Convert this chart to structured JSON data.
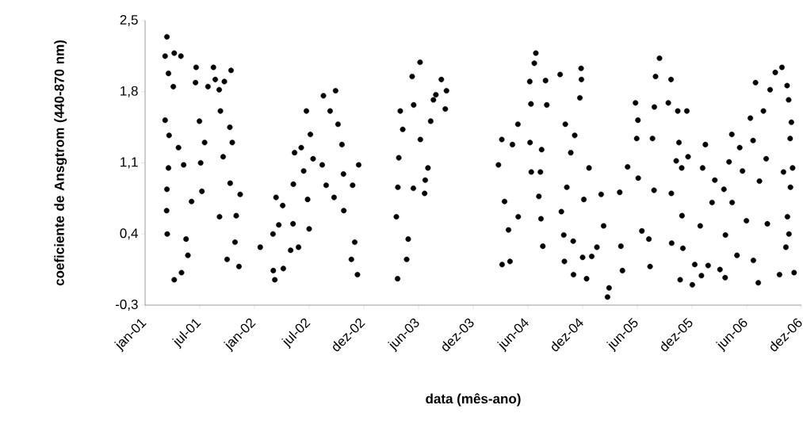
{
  "chart_data": {
    "type": "scatter",
    "xlabel": "data (mês-ano)",
    "ylabel": "coeficiente de Ansgtrom (440-870 nm)",
    "color": "#000000",
    "marker": "circle",
    "xlim": [
      "2001-01-10",
      "2006-12-10"
    ],
    "ylim": [
      -0.3,
      2.5
    ],
    "xticks": [
      {
        "value": "2001-01-10",
        "label": "jan-01"
      },
      {
        "value": "2001-07-09",
        "label": "jul-01"
      },
      {
        "value": "2002-01-05",
        "label": "jan-02"
      },
      {
        "value": "2002-07-04",
        "label": "jul-02"
      },
      {
        "value": "2002-12-31",
        "label": "dez-02"
      },
      {
        "value": "2003-06-29",
        "label": "jun-03"
      },
      {
        "value": "2003-12-26",
        "label": "dez-03"
      },
      {
        "value": "2004-06-23",
        "label": "jun-04"
      },
      {
        "value": "2004-12-20",
        "label": "dez-04"
      },
      {
        "value": "2005-06-18",
        "label": "jun-05"
      },
      {
        "value": "2005-12-15",
        "label": "dez-05"
      },
      {
        "value": "2006-06-13",
        "label": "jun-06"
      },
      {
        "value": "2006-12-10",
        "label": "dez-06"
      }
    ],
    "yticks": [
      {
        "value": -0.3,
        "label": "-0,3"
      },
      {
        "value": 0.4,
        "label": "0,4"
      },
      {
        "value": 1.1,
        "label": "1,1"
      },
      {
        "value": 1.8,
        "label": "1,8"
      },
      {
        "value": 2.5,
        "label": "2,5"
      }
    ],
    "x": [
      "2001-03-23",
      "2001-03-17",
      "2001-04-16",
      "2001-05-08",
      "2001-03-28",
      "2001-04-13",
      "2001-03-17",
      "2001-03-30",
      "2001-04-30",
      "2001-03-28",
      "2001-03-23",
      "2001-03-22",
      "2001-03-24",
      "2001-04-16",
      "2001-05-10",
      "2001-05-31",
      "2001-05-25",
      "2001-06-12",
      "2001-05-17",
      "2001-06-27",
      "2001-06-25",
      "2001-07-08",
      "2001-07-12",
      "2001-07-16",
      "2001-07-25",
      "2001-08-05",
      "2001-08-23",
      "2001-08-29",
      "2001-09-11",
      "2001-09-28",
      "2001-10-20",
      "2001-09-15",
      "2001-09-24",
      "2001-09-12",
      "2001-10-16",
      "2001-10-24",
      "2001-10-17",
      "2001-11-19",
      "2001-11-06",
      "2001-11-02",
      "2001-10-07",
      "2001-11-15",
      "2002-01-24",
      "2002-03-08",
      "2002-03-13",
      "2002-04-10",
      "2002-03-07",
      "2002-03-17",
      "2002-03-26",
      "2002-04-08",
      "2002-05-04",
      "2002-05-12",
      "2002-05-30",
      "2002-05-13",
      "2002-05-17",
      "2002-06-08",
      "2002-06-16",
      "2002-06-29",
      "2002-07-04",
      "2002-06-25",
      "2002-07-08",
      "2002-07-17",
      "2002-08-20",
      "2002-08-16",
      "2002-08-29",
      "2002-09-29",
      "2002-09-11",
      "2002-10-07",
      "2002-10-20",
      "2002-09-24",
      "2002-10-25",
      "2002-10-26",
      "2002-12-14",
      "2002-11-24",
      "2002-12-01",
      "2002-11-20",
      "2002-12-10",
      "2003-04-21",
      "2003-04-17",
      "2003-05-26",
      "2003-05-21",
      "2003-04-30",
      "2003-04-22",
      "2003-04-25",
      "2003-06-12",
      "2003-05-08",
      "2003-07-04",
      "2003-06-08",
      "2003-06-13",
      "2003-07-21",
      "2003-07-19",
      "2003-07-30",
      "2003-08-08",
      "2003-08-25",
      "2003-09-12",
      "2003-09-29",
      "2003-09-25",
      "2003-07-05",
      "2003-08-17",
      "2004-03-18",
      "2004-03-29",
      "2004-03-30",
      "2004-04-25",
      "2004-04-20",
      "2004-05-21",
      "2004-05-22",
      "2004-05-03",
      "2004-04-07",
      "2004-07-19",
      "2004-07-14",
      "2004-06-29",
      "2004-07-03",
      "2004-08-20",
      "2004-08-24",
      "2004-06-30",
      "2004-08-07",
      "2004-07-04",
      "2004-08-03",
      "2004-07-29",
      "2004-08-05",
      "2004-08-11",
      "2004-10-07",
      "2004-12-15",
      "2004-12-16",
      "2004-12-11",
      "2004-10-24",
      "2004-11-24",
      "2004-11-11",
      "2005-01-10",
      "2004-10-29",
      "2004-12-24",
      "2004-10-11",
      "2004-10-19",
      "2004-11-19",
      "2004-10-21",
      "2004-12-20",
      "2004-11-20",
      "2005-01-02",
      "2005-02-05",
      "2005-03-12",
      "2005-03-17",
      "2005-02-19",
      "2005-02-27",
      "2005-01-19",
      "2005-04-30",
      "2005-04-25",
      "2005-04-21",
      "2005-05-17",
      "2005-06-12",
      "2005-06-20",
      "2005-06-16",
      "2005-07-03",
      "2005-06-21",
      "2005-07-30",
      "2005-07-26",
      "2005-08-07",
      "2005-08-12",
      "2005-08-30",
      "2005-08-17",
      "2005-08-13",
      "2005-10-07",
      "2005-09-28",
      "2005-10-29",
      "2005-11-28",
      "2005-11-02",
      "2005-10-24",
      "2005-10-08",
      "2005-10-09",
      "2005-11-11",
      "2005-12-02",
      "2005-11-12",
      "2005-11-15",
      "2005-11-06",
      "2005-12-16",
      "2005-12-24",
      "2006-01-15",
      "2006-01-19",
      "2006-01-28",
      "2006-01-11",
      "2006-02-06",
      "2006-02-19",
      "2006-02-28",
      "2006-03-17",
      "2006-03-30",
      "2006-04-03",
      "2006-04-04",
      "2006-04-16",
      "2006-04-25",
      "2006-04-26",
      "2006-05-12",
      "2006-05-21",
      "2006-05-30",
      "2006-06-12",
      "2006-06-25",
      "2006-07-12",
      "2006-07-04",
      "2006-07-21",
      "2006-07-05",
      "2006-07-25",
      "2006-08-07",
      "2006-08-16",
      "2006-08-20",
      "2006-08-29",
      "2006-09-15",
      "2006-10-07",
      "2006-10-24",
      "2006-10-29",
      "2006-11-07",
      "2006-11-03",
      "2006-10-12",
      "2006-11-11",
      "2006-10-25",
      "2006-10-20",
      "2006-11-16",
      "2006-09-29",
      "2006-10-30",
      "2006-11-04"
    ],
    "values": [
      2.34,
      2.15,
      2.18,
      2.15,
      1.98,
      1.85,
      1.52,
      1.37,
      1.25,
      1.05,
      0.84,
      0.63,
      0.4,
      -0.05,
      0.02,
      0.19,
      0.35,
      0.72,
      1.08,
      2.04,
      1.89,
      1.51,
      1.1,
      0.82,
      1.3,
      1.85,
      2.04,
      1.92,
      1.82,
      1.9,
      2.01,
      1.61,
      1.16,
      0.57,
      1.45,
      1.3,
      0.9,
      0.79,
      0.58,
      0.32,
      0.15,
      0.08,
      0.27,
      0.04,
      -0.05,
      0.06,
      0.4,
      0.76,
      0.49,
      0.68,
      0.24,
      0.5,
      0.27,
      0.89,
      1.2,
      1.25,
      1.02,
      0.74,
      0.45,
      1.61,
      1.38,
      1.14,
      1.76,
      1.08,
      0.88,
      1.81,
      1.61,
      1.48,
      1.28,
      0.76,
      0.99,
      0.63,
      1.08,
      0.88,
      0.32,
      0.15,
      0.0,
      -0.04,
      0.57,
      0.35,
      0.15,
      1.61,
      0.86,
      1.15,
      0.85,
      1.43,
      2.09,
      1.95,
      1.67,
      0.93,
      0.8,
      1.05,
      1.51,
      1.77,
      1.92,
      1.81,
      1.63,
      1.33,
      1.72,
      1.08,
      1.33,
      0.1,
      0.13,
      0.44,
      1.48,
      0.57,
      1.28,
      0.72,
      2.18,
      2.08,
      1.9,
      1.68,
      1.91,
      1.67,
      1.3,
      1.23,
      1.01,
      1.01,
      0.77,
      0.55,
      0.28,
      1.97,
      2.03,
      1.92,
      1.74,
      1.48,
      1.37,
      1.2,
      1.05,
      0.86,
      0.74,
      0.62,
      0.39,
      0.33,
      0.13,
      0.17,
      0.0,
      -0.04,
      0.27,
      -0.22,
      -0.13,
      0.79,
      0.48,
      0.18,
      0.04,
      0.28,
      0.81,
      1.06,
      1.69,
      1.52,
      1.34,
      0.43,
      0.95,
      0.08,
      0.35,
      1.34,
      0.83,
      2.13,
      1.95,
      1.65,
      1.92,
      1.69,
      1.61,
      1.61,
      1.3,
      1.12,
      0.8,
      0.31,
      1.05,
      1.16,
      0.58,
      0.26,
      -0.05,
      -0.1,
      0.1,
      -0.01,
      1.05,
      1.28,
      0.48,
      0.09,
      0.71,
      0.93,
      0.05,
      0.84,
      -0.03,
      0.39,
      1.11,
      1.38,
      0.71,
      0.19,
      1.25,
      1.02,
      0.53,
      1.54,
      1.89,
      1.32,
      -0.08,
      0.14,
      0.92,
      1.61,
      1.14,
      0.5,
      1.82,
      1.99,
      2.04,
      1.86,
      1.72,
      1.5,
      1.34,
      1.01,
      1.05,
      0.57,
      0.27,
      0.02,
      0.0,
      0.4,
      0.86
    ]
  }
}
